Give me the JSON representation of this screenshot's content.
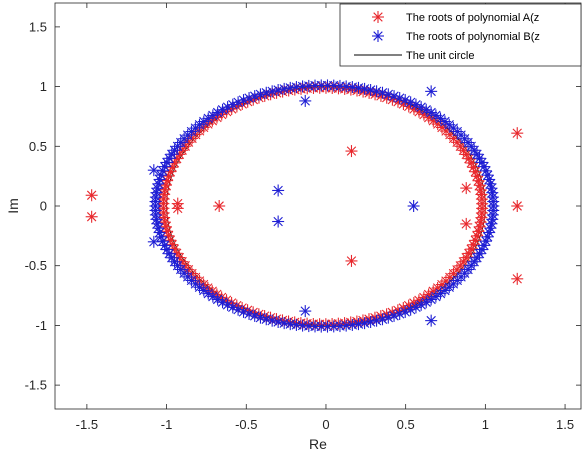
{
  "chart_data": {
    "type": "scatter",
    "title": "",
    "xlabel": "Re",
    "ylabel": "Im",
    "xlim": [
      -1.7,
      1.6
    ],
    "ylim": [
      -1.7,
      1.7
    ],
    "x_ticks": [
      -1.5,
      -1,
      -0.5,
      0,
      0.5,
      1,
      1.5
    ],
    "x_tick_labels": [
      "-1.5",
      "-1",
      "-0.5",
      "0",
      "0.5",
      "1",
      "1.5"
    ],
    "y_ticks": [
      -1.5,
      -1,
      -0.5,
      0,
      0.5,
      1,
      1.5
    ],
    "y_tick_labels": [
      "-1.5",
      "-1",
      "-0.5",
      "0",
      "0.5",
      "1",
      "1.5"
    ],
    "grid": false,
    "legend_position": "top-right",
    "series": [
      {
        "name": "The roots of polynomial A(z",
        "marker": "asterisk",
        "color": "#e8282d",
        "ring": {
          "center": [
            -0.02,
            0
          ],
          "radius_x": 1.0,
          "radius_y": 0.99,
          "count": 160,
          "phase_deg": 1.1
        },
        "points": [
          [
            -1.47,
            0.09
          ],
          [
            -1.47,
            -0.09
          ],
          [
            -0.67,
            0.0
          ],
          [
            0.16,
            0.46
          ],
          [
            0.16,
            -0.46
          ],
          [
            1.2,
            0.61
          ],
          [
            1.2,
            -0.61
          ],
          [
            1.2,
            0.0
          ],
          [
            0.88,
            0.15
          ],
          [
            0.88,
            -0.15
          ],
          [
            -0.93,
            0.02
          ],
          [
            -0.93,
            -0.02
          ]
        ]
      },
      {
        "name": "The roots of polynomial B(z",
        "marker": "asterisk",
        "color": "#1f1fd4",
        "ring": {
          "center": [
            -0.01,
            0
          ],
          "radius_x": 1.06,
          "radius_y": 1.01,
          "count": 170,
          "phase_deg": 0
        },
        "points": [
          [
            -0.3,
            0.13
          ],
          [
            -0.3,
            -0.13
          ],
          [
            0.55,
            0.0
          ],
          [
            -0.13,
            0.88
          ],
          [
            -0.13,
            -0.88
          ],
          [
            0.66,
            0.96
          ],
          [
            0.66,
            -0.96
          ],
          [
            -1.08,
            0.3
          ],
          [
            -1.08,
            -0.3
          ]
        ]
      },
      {
        "name": "The unit circle",
        "type": "line",
        "color": "#000000",
        "circle": {
          "center": [
            0,
            0
          ],
          "radius": 1
        }
      }
    ]
  }
}
